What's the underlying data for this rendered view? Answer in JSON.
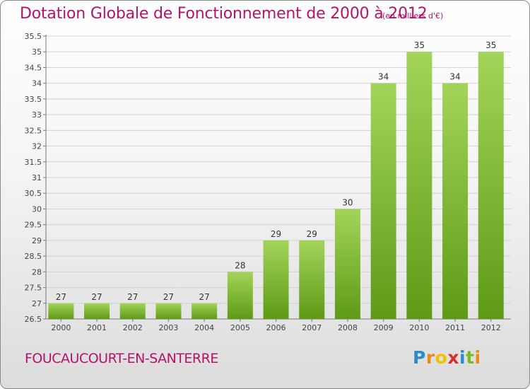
{
  "header": {
    "title": "Dotation Globale de Fonctionnement de 2000 à 2012",
    "unit": "(en milliers d'€)"
  },
  "footer": {
    "commune": "FOUCAUCOURT-EN-SANTERRE"
  },
  "logo": {
    "letters": [
      "P",
      "r",
      "o",
      "x",
      "i",
      "t",
      "i"
    ],
    "colors": [
      "#2b8ac9",
      "#e98a1a",
      "#f2c200",
      "#d72d2d",
      "#2b8ac9",
      "#7cb928",
      "#e98a1a"
    ]
  },
  "colors": {
    "text_accent": "#b5136a",
    "bar_light": "#a3d45a",
    "bar_dark": "#5e9a16",
    "grid": "#d2d2d2"
  },
  "chart_data": {
    "type": "bar",
    "categories": [
      "2000",
      "2001",
      "2002",
      "2003",
      "2004",
      "2005",
      "2006",
      "2007",
      "2008",
      "2009",
      "2010",
      "2011",
      "2012"
    ],
    "values": [
      27,
      27,
      27,
      27,
      27,
      28,
      29,
      29,
      30,
      34,
      35,
      34,
      35
    ],
    "data_labels": [
      "27",
      "27",
      "27",
      "27",
      "27",
      "28",
      "29",
      "29",
      "30",
      "34",
      "35",
      "34",
      "35"
    ],
    "ylim": [
      26.5,
      35.5
    ],
    "yticks": [
      "26.5",
      "27",
      "27.5",
      "28",
      "28.5",
      "29",
      "29.5",
      "30",
      "30.5",
      "31",
      "31.5",
      "32",
      "32.5",
      "33",
      "33.5",
      "34",
      "34.5",
      "35",
      "35.5"
    ],
    "grid": true
  }
}
